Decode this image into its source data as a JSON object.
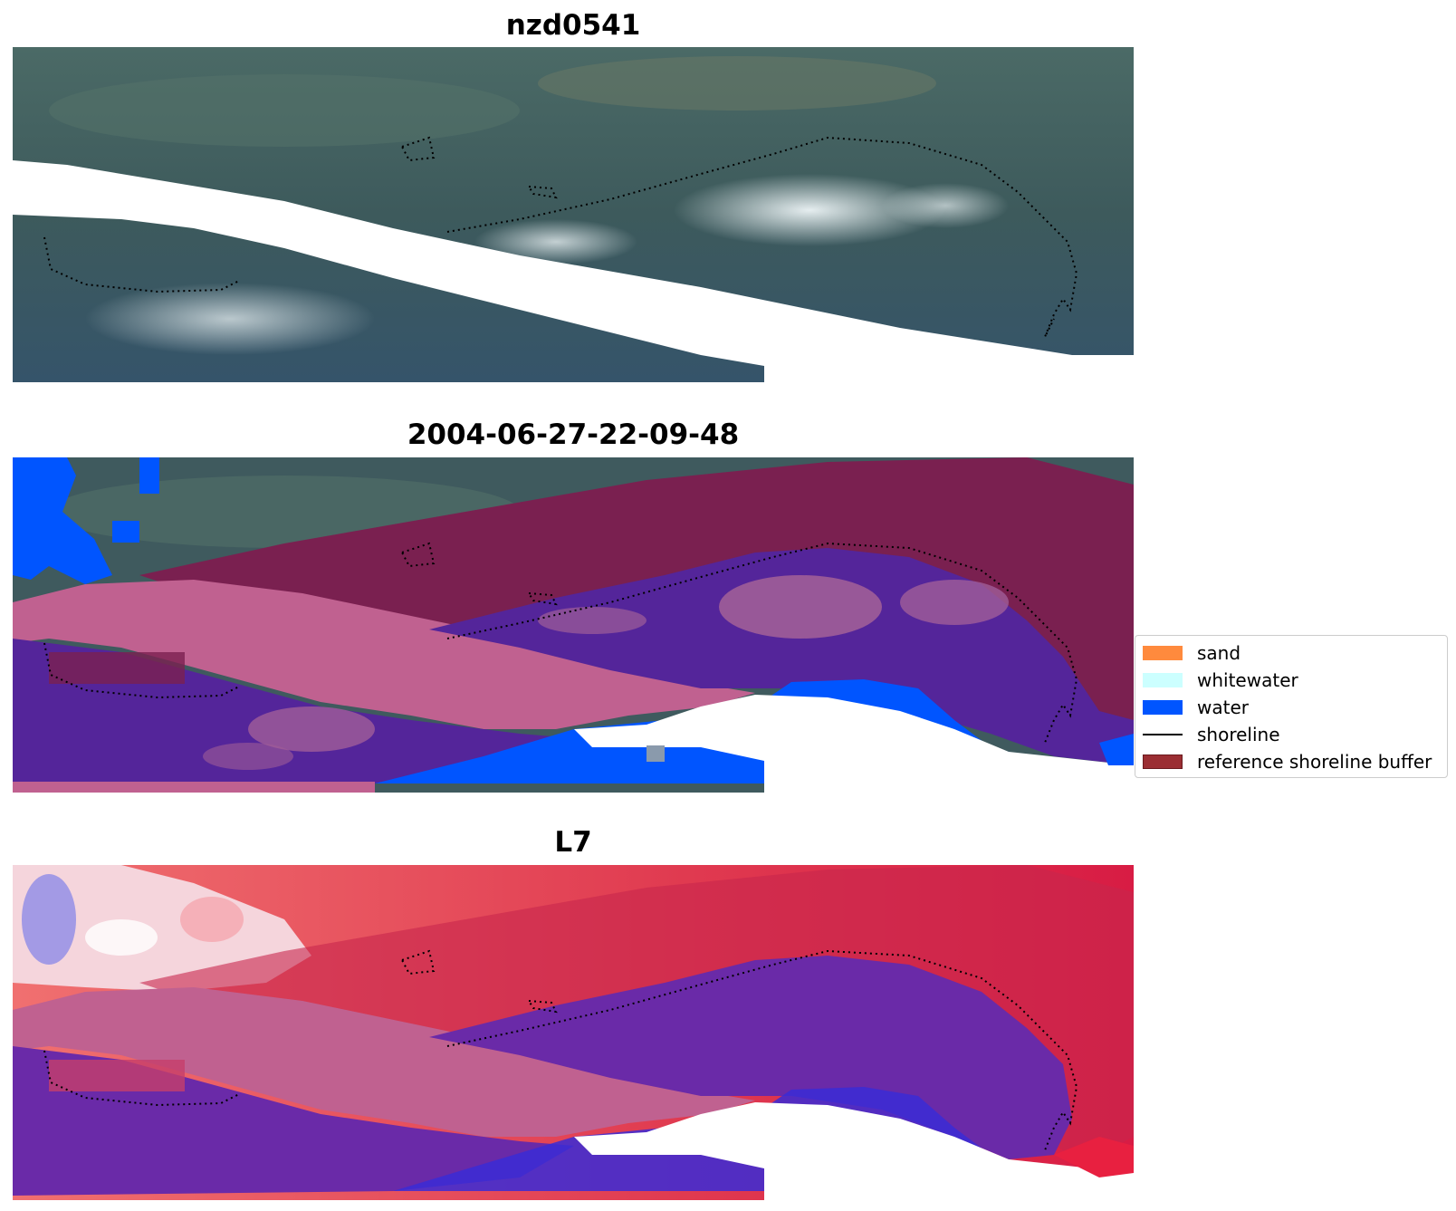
{
  "panels": [
    {
      "title": "nzd0541"
    },
    {
      "title": "2004-06-27-22-09-48"
    },
    {
      "title": "L7"
    }
  ],
  "legend": {
    "items": [
      {
        "label": "sand",
        "type": "patch",
        "color": "#ff8a3d"
      },
      {
        "label": "whitewater",
        "type": "patch",
        "color": "#ccffff"
      },
      {
        "label": "water",
        "type": "patch",
        "color": "#0055ff"
      },
      {
        "label": "shoreline",
        "type": "line",
        "color": "#000000"
      },
      {
        "label": "reference shoreline buffer",
        "type": "patch",
        "color": "#9b2e33"
      }
    ]
  },
  "colors": {
    "rgb_base": "#3f5a5e",
    "buffer_overlay": "#7a2050",
    "classified_water": "#0055ff",
    "submerged_sand": "#54259a",
    "pink_band": "#c06190",
    "index_red": "#d81c44",
    "index_blue": "#3a2bd6"
  }
}
